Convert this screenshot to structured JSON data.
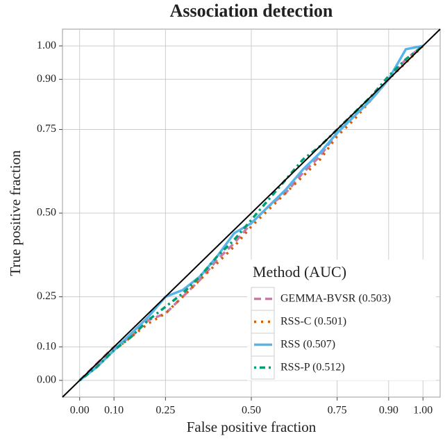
{
  "chart_data": {
    "type": "line",
    "title": "Association detection",
    "x_label": "False positive fraction",
    "y_label": "True positive fraction",
    "x": [
      0,
      0.05,
      0.1,
      0.15,
      0.2,
      0.25,
      0.3,
      0.35,
      0.4,
      0.45,
      0.5,
      0.55,
      0.6,
      0.65,
      0.7,
      0.75,
      0.8,
      0.85,
      0.9,
      0.95,
      1
    ],
    "series": [
      {
        "name": "GEMMA-BVSR (0.503)",
        "color": "#cc79a7",
        "dash": "dashed",
        "values": [
          0,
          0.05,
          0.1,
          0.13,
          0.18,
          0.2,
          0.25,
          0.3,
          0.36,
          0.41,
          0.47,
          0.52,
          0.56,
          0.62,
          0.67,
          0.74,
          0.79,
          0.84,
          0.9,
          0.96,
          1
        ]
      },
      {
        "name": "RSS-C (0.501)",
        "color": "#d55e00",
        "dash": "dotted",
        "values": [
          0,
          0.04,
          0.09,
          0.13,
          0.17,
          0.2,
          0.25,
          0.3,
          0.35,
          0.4,
          0.46,
          0.51,
          0.56,
          0.61,
          0.66,
          0.73,
          0.78,
          0.84,
          0.9,
          0.95,
          1
        ]
      },
      {
        "name": "RSS (0.507)",
        "color": "#56b4e9",
        "dash": "solid",
        "values": [
          0,
          0.04,
          0.09,
          0.14,
          0.19,
          0.25,
          0.27,
          0.31,
          0.37,
          0.44,
          0.47,
          0.52,
          0.57,
          0.63,
          0.68,
          0.74,
          0.79,
          0.84,
          0.9,
          0.99,
          1
        ]
      },
      {
        "name": "RSS-P (0.512)",
        "color": "#009e73",
        "dash": "dotdash",
        "values": [
          0,
          0.04,
          0.09,
          0.13,
          0.18,
          0.22,
          0.26,
          0.31,
          0.37,
          0.42,
          0.48,
          0.54,
          0.6,
          0.66,
          0.7,
          0.75,
          0.8,
          0.85,
          0.91,
          0.96,
          1
        ]
      }
    ],
    "xlim": [
      -0.05,
      1.05
    ],
    "ylim": [
      -0.05,
      1.05
    ],
    "xticks": [
      {
        "value": 0,
        "label": "0.00"
      },
      {
        "value": 0.1,
        "label": "0.10"
      },
      {
        "value": 0.25,
        "label": "0.25"
      },
      {
        "value": 0.5,
        "label": "0.50"
      },
      {
        "value": 0.75,
        "label": "0.75"
      },
      {
        "value": 0.9,
        "label": "0.90"
      },
      {
        "value": 1,
        "label": "1.00"
      }
    ],
    "yticks": [
      {
        "value": 0,
        "label": "0.00"
      },
      {
        "value": 0.1,
        "label": "0.10"
      },
      {
        "value": 0.25,
        "label": "0.25"
      },
      {
        "value": 0.5,
        "label": "0.50"
      },
      {
        "value": 0.75,
        "label": "0.75"
      },
      {
        "value": 0.9,
        "label": "0.90"
      },
      {
        "value": 1,
        "label": "1.00"
      }
    ],
    "grid": true,
    "legend": "bottom-right",
    "legend_title": "Method (AUC)"
  }
}
